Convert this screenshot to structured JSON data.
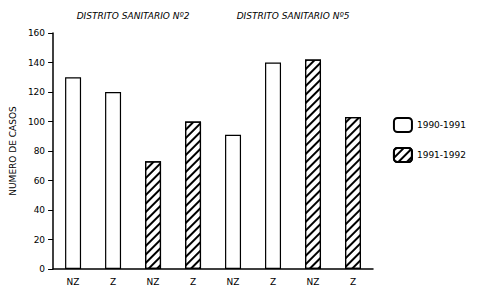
{
  "chart_data": {
    "type": "bar",
    "y_label": "NUMERO DE CASOS",
    "groups": [
      "DISTRITO SANITARIO Nº2",
      "DISTRITO SANITARIO Nº5"
    ],
    "categories": [
      "NZ",
      "Z",
      "NZ",
      "Z",
      "NZ",
      "Z",
      "NZ",
      "Z"
    ],
    "series": [
      {
        "name": "1990-1991",
        "color": "#ffffff",
        "values": [
          130,
          120,
          null,
          null,
          91,
          140,
          null,
          null
        ]
      },
      {
        "name": "1991-1992",
        "color": "#ffffff",
        "marker": "hatch",
        "values": [
          null,
          null,
          73,
          100,
          null,
          null,
          142,
          103
        ]
      }
    ],
    "ylim": [
      0,
      160
    ],
    "yticks": [
      0,
      20,
      40,
      60,
      80,
      100,
      120,
      140,
      160
    ],
    "grid": false,
    "legend": "right"
  }
}
